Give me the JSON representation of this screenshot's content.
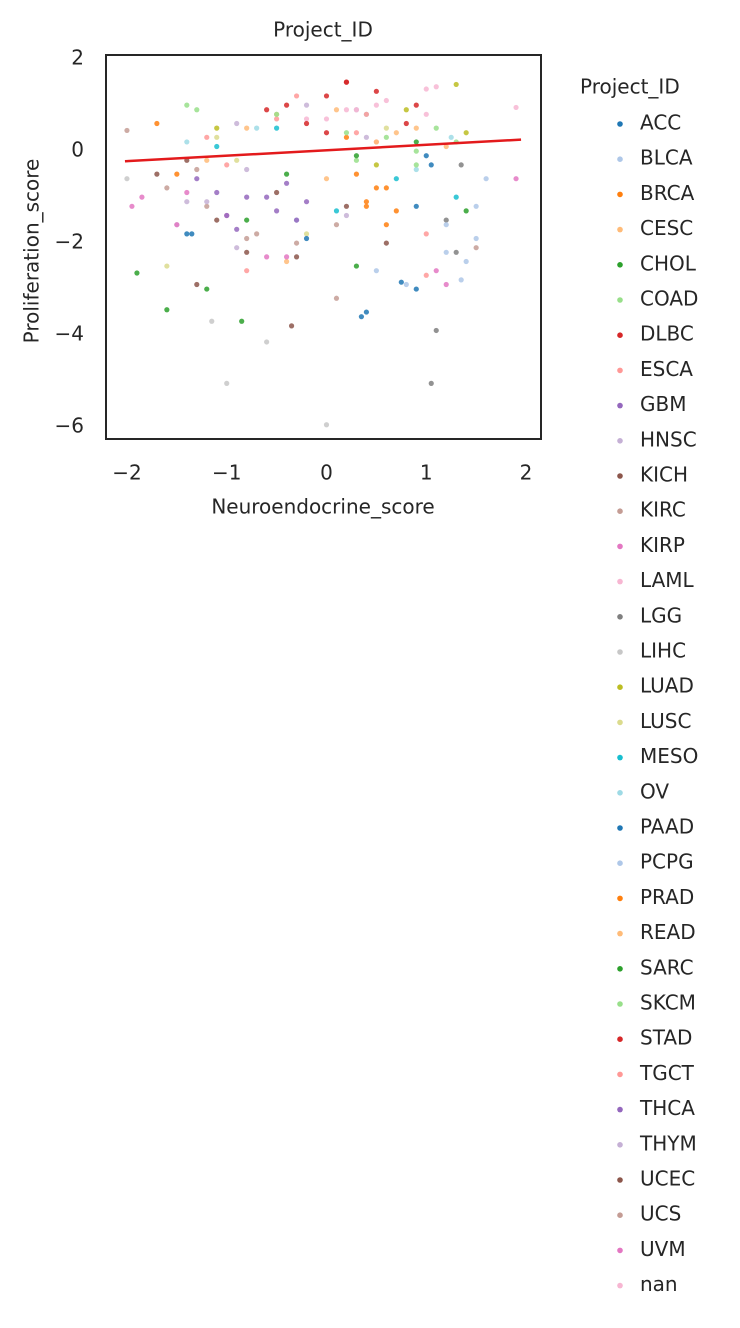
{
  "chart_data": {
    "type": "scatter",
    "title": "Project_ID",
    "x_label": "Neuroendocrine_score",
    "y_label": "Proliferation_score",
    "legend_title": "Project_ID",
    "xlim": [
      -2.21,
      2.15
    ],
    "ylim": [
      -6.26,
      2.09
    ],
    "xticks": [
      {
        "value": -2,
        "label": "−2"
      },
      {
        "value": -1,
        "label": "−1"
      },
      0,
      1,
      2
    ],
    "yticks": [
      {
        "value": -6,
        "label": "−6"
      },
      {
        "value": -4,
        "label": "−4"
      },
      {
        "value": -2,
        "label": "−2"
      },
      0,
      2
    ],
    "grid": false,
    "legend": "outside right",
    "trend": {
      "x": [
        -2.02,
        1.95
      ],
      "y": [
        -0.22,
        0.25
      ],
      "color": "#e31a1c"
    },
    "series": [
      {
        "name": "ACC",
        "color": "#1f77b4",
        "x": [
          0.75,
          1.05,
          0.4,
          -1.35,
          0.9
        ],
        "y": [
          -2.85,
          -0.3,
          -3.5,
          -1.8,
          -1.2
        ]
      },
      {
        "name": "BLCA",
        "color": "#aec7e8",
        "x": [
          1.2,
          1.35,
          0.5,
          -0.3,
          1.5
        ],
        "y": [
          -2.2,
          -2.8,
          -2.6,
          -1.5,
          -1.9
        ]
      },
      {
        "name": "BRCA",
        "color": "#ff7f0e",
        "x": [
          0.4,
          0.6,
          -1.7,
          0.2,
          -1.5
        ],
        "y": [
          -1.2,
          -0.8,
          0.6,
          0.3,
          -0.5
        ]
      },
      {
        "name": "CESC",
        "color": "#ffbb78",
        "x": [
          -0.8,
          -1.2,
          0.1,
          0.7,
          -0.4
        ],
        "y": [
          0.5,
          -0.2,
          0.9,
          0.4,
          -2.4
        ]
      },
      {
        "name": "CHOL",
        "color": "#2ca02c",
        "x": [
          -1.9,
          -1.6,
          -0.85,
          0.9,
          0.3
        ],
        "y": [
          -2.65,
          -3.45,
          -3.7,
          0.2,
          -2.5
        ]
      },
      {
        "name": "COAD",
        "color": "#98df8a",
        "x": [
          0.6,
          0.9,
          1.1,
          -1.3,
          0.3
        ],
        "y": [
          0.3,
          0.0,
          0.5,
          0.9,
          -0.2
        ]
      },
      {
        "name": "DLBC",
        "color": "#d62728",
        "x": [
          0.0,
          -0.4,
          0.2,
          0.8,
          -0.6
        ],
        "y": [
          1.2,
          1.0,
          1.5,
          0.6,
          0.9
        ]
      },
      {
        "name": "ESCA",
        "color": "#ff9896",
        "x": [
          -0.5,
          0.3,
          1.0,
          -1.0,
          0.5
        ],
        "y": [
          0.7,
          0.4,
          -2.7,
          -0.3,
          0.2
        ]
      },
      {
        "name": "GBM",
        "color": "#9467bd",
        "x": [
          -0.8,
          -0.5,
          -1.1,
          -0.3,
          -0.9
        ],
        "y": [
          -1.0,
          -1.3,
          -0.9,
          -1.5,
          -1.7
        ]
      },
      {
        "name": "HNSC",
        "color": "#c5b0d5",
        "x": [
          -0.9,
          -0.2,
          0.4,
          -1.4,
          0.2
        ],
        "y": [
          0.6,
          1.0,
          0.3,
          -1.1,
          -1.4
        ]
      },
      {
        "name": "KICH",
        "color": "#8c564b",
        "x": [
          -1.7,
          -1.3,
          -0.35,
          0.2,
          -0.8
        ],
        "y": [
          -0.5,
          -2.9,
          -3.8,
          -1.2,
          -2.2
        ]
      },
      {
        "name": "KIRC",
        "color": "#c49c94",
        "x": [
          -1.6,
          -1.2,
          -0.8,
          -0.3,
          0.1
        ],
        "y": [
          -0.8,
          -1.2,
          -1.9,
          -2.0,
          -1.6
        ]
      },
      {
        "name": "KIRP",
        "color": "#e377c2",
        "x": [
          -1.95,
          -1.4,
          -0.6,
          1.1,
          -1.0
        ],
        "y": [
          -1.2,
          -0.9,
          -2.3,
          -2.6,
          -1.4
        ]
      },
      {
        "name": "LAML",
        "color": "#f7b6d2",
        "x": [
          0.2,
          0.6,
          -0.2,
          1.0,
          1.1
        ],
        "y": [
          0.9,
          1.1,
          0.7,
          0.8,
          1.4
        ]
      },
      {
        "name": "LGG",
        "color": "#7f7f7f",
        "x": [
          1.2,
          1.3,
          1.1,
          1.35,
          1.05
        ],
        "y": [
          -1.5,
          -2.2,
          -3.9,
          -0.3,
          -5.05
        ]
      },
      {
        "name": "LIHC",
        "color": "#c7c7c7",
        "x": [
          -1.0,
          0.0,
          -0.6,
          -1.15,
          -2.0
        ],
        "y": [
          -5.05,
          -5.95,
          -4.15,
          -3.7,
          -0.6
        ]
      },
      {
        "name": "LUAD",
        "color": "#bcbd22",
        "x": [
          1.3,
          0.8,
          -1.1,
          1.4,
          0.5
        ],
        "y": [
          1.45,
          0.9,
          0.5,
          0.4,
          -0.3
        ]
      },
      {
        "name": "LUSC",
        "color": "#dbdb8d",
        "x": [
          -1.6,
          -0.9,
          -0.2,
          0.6,
          -1.1
        ],
        "y": [
          -2.5,
          -0.2,
          -1.8,
          0.5,
          0.3
        ]
      },
      {
        "name": "MESO",
        "color": "#17becf",
        "x": [
          -1.1,
          0.1,
          0.7,
          -0.5,
          1.3
        ],
        "y": [
          0.1,
          -1.3,
          -0.6,
          0.5,
          -1.0
        ]
      },
      {
        "name": "OV",
        "color": "#9edae5",
        "x": [
          -1.4,
          -0.7,
          0.4,
          1.25,
          0.9
        ],
        "y": [
          0.2,
          0.5,
          0.8,
          0.3,
          -0.4
        ]
      },
      {
        "name": "PAAD",
        "color": "#1f77b4",
        "x": [
          0.35,
          -1.4,
          0.9,
          1.0,
          -0.2
        ],
        "y": [
          -3.6,
          -1.8,
          -3.0,
          -0.1,
          -1.9
        ]
      },
      {
        "name": "PCPG",
        "color": "#aec7e8",
        "x": [
          1.2,
          1.4,
          1.5,
          0.8,
          1.6
        ],
        "y": [
          -1.6,
          -2.4,
          -1.2,
          -2.9,
          -0.6
        ]
      },
      {
        "name": "PRAD",
        "color": "#ff7f0e",
        "x": [
          0.5,
          0.4,
          0.7,
          0.3,
          0.6
        ],
        "y": [
          -0.8,
          -1.1,
          -1.3,
          -0.5,
          -1.6
        ]
      },
      {
        "name": "READ",
        "color": "#ffbb78",
        "x": [
          0.5,
          0.9,
          -0.5,
          1.2,
          0.0
        ],
        "y": [
          0.2,
          0.5,
          0.8,
          0.1,
          -0.6
        ]
      },
      {
        "name": "SARC",
        "color": "#2ca02c",
        "x": [
          -0.4,
          0.3,
          1.4,
          -1.2,
          -0.8
        ],
        "y": [
          -0.5,
          -0.1,
          -1.3,
          -3.0,
          -1.5
        ]
      },
      {
        "name": "SKCM",
        "color": "#98df8a",
        "x": [
          -1.4,
          0.2,
          0.9,
          -0.5,
          1.3
        ],
        "y": [
          1.0,
          0.4,
          -0.3,
          0.8,
          0.2
        ]
      },
      {
        "name": "STAD",
        "color": "#d62728",
        "x": [
          0.2,
          0.5,
          -0.2,
          0.9,
          0.0
        ],
        "y": [
          1.5,
          1.3,
          0.6,
          1.0,
          0.4
        ]
      },
      {
        "name": "TGCT",
        "color": "#ff9896",
        "x": [
          -0.3,
          0.4,
          1.0,
          -1.2,
          -0.8
        ],
        "y": [
          1.2,
          0.8,
          -1.8,
          0.3,
          -2.6
        ]
      },
      {
        "name": "THCA",
        "color": "#9467bd",
        "x": [
          -1.3,
          -0.6,
          -1.0,
          -0.2,
          -0.4
        ],
        "y": [
          -0.6,
          -1.0,
          -1.4,
          -1.1,
          -0.7
        ]
      },
      {
        "name": "THYM",
        "color": "#c5b0d5",
        "x": [
          -1.2,
          -1.5,
          -0.8,
          0.3,
          -0.9
        ],
        "y": [
          -1.1,
          -1.6,
          -0.4,
          0.9,
          -2.1
        ]
      },
      {
        "name": "UCEC",
        "color": "#8c564b",
        "x": [
          -1.4,
          -0.5,
          0.6,
          -1.1,
          -0.3
        ],
        "y": [
          -0.2,
          -0.9,
          -2.0,
          -1.5,
          -2.3
        ]
      },
      {
        "name": "UCS",
        "color": "#c49c94",
        "x": [
          -2.0,
          -1.3,
          0.1,
          1.5,
          -0.7
        ],
        "y": [
          0.45,
          -0.4,
          -3.2,
          -2.1,
          -1.8
        ]
      },
      {
        "name": "UVM",
        "color": "#e377c2",
        "x": [
          -1.85,
          1.9,
          -1.5,
          1.2,
          -0.4
        ],
        "y": [
          -1.0,
          -0.6,
          -1.6,
          -2.9,
          -2.3
        ]
      },
      {
        "name": "nan",
        "color": "#f7b6d2",
        "x": [
          0.3,
          0.0,
          0.5,
          1.0,
          1.9
        ],
        "y": [
          0.9,
          0.7,
          1.0,
          1.35,
          0.95
        ]
      }
    ]
  }
}
